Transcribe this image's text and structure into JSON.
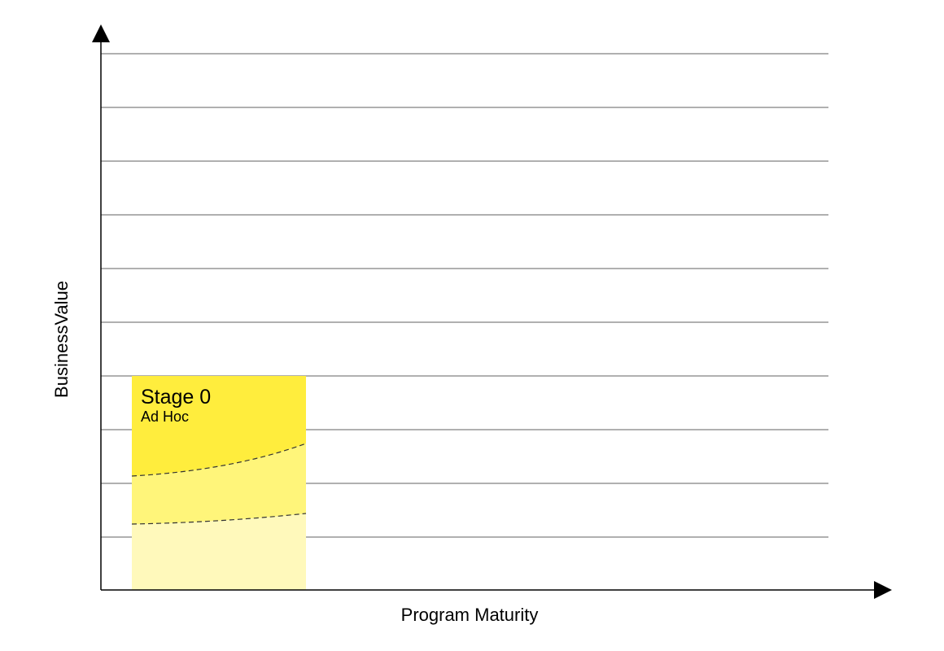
{
  "axes": {
    "y_label": "BusinessValue",
    "x_label": "Program Maturity"
  },
  "stage": {
    "title": "Stage 0",
    "subtitle": "Ad Hoc"
  },
  "colors": {
    "gridline": "#808080",
    "axis": "#000000",
    "band_top": "#FFED3D",
    "band_middle": "#FFF57A",
    "band_bottom": "#FFF9BB",
    "divider": "#333333"
  }
}
